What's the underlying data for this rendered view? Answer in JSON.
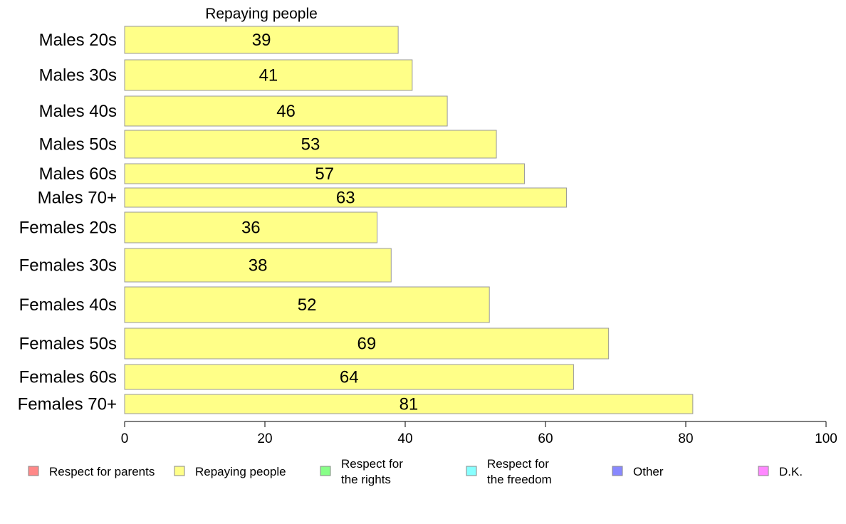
{
  "chart_data": {
    "type": "bar",
    "orientation": "horizontal",
    "title": "Repaying people",
    "categories": [
      "Males 20s",
      "Males 30s",
      "Males 40s",
      "Males 50s",
      "Males 60s",
      "Males 70+",
      "Females 20s",
      "Females 30s",
      "Females 40s",
      "Females 50s",
      "Females 60s",
      "Females 70+"
    ],
    "series": [
      {
        "name": "Repaying people",
        "color": "#ffff88",
        "values": [
          39,
          41,
          46,
          53,
          57,
          63,
          36,
          38,
          52,
          69,
          64,
          81
        ]
      }
    ],
    "xlim": [
      0,
      100
    ],
    "xticks": [
      "0",
      "20",
      "40",
      "60",
      "80",
      "100"
    ],
    "grid": false,
    "legend": {
      "placement": "bottom",
      "items": [
        {
          "lines": [
            "Respect for parents"
          ],
          "color": "#ff8888"
        },
        {
          "lines": [
            "Repaying people"
          ],
          "color": "#ffff88"
        },
        {
          "lines": [
            "Respect for",
            "the rights"
          ],
          "color": "#88ff88"
        },
        {
          "lines": [
            "Respect for",
            "the freedom"
          ],
          "color": "#88ffff"
        },
        {
          "lines": [
            "Other"
          ],
          "color": "#8888ff"
        },
        {
          "lines": [
            "D.K."
          ],
          "color": "#ff88ff"
        }
      ]
    }
  }
}
